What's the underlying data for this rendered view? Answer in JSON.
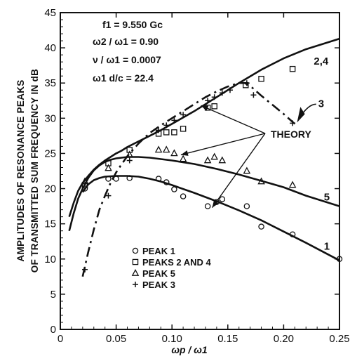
{
  "chart_data": {
    "type": "line",
    "title": "",
    "xlabel": "ωp / ω1",
    "ylabel_lines": [
      "AMPLITUDES OF RESONANCE PEAKS",
      "OF TRANSMITTED SUM FREQUENCY IN dB"
    ],
    "xlim": [
      0,
      0.25
    ],
    "ylim": [
      0,
      45
    ],
    "x_ticks": [
      "0",
      "0.05",
      "0.10",
      "0.15",
      "0.20",
      "0.25"
    ],
    "y_ticks": [
      "0",
      "5",
      "10",
      "15",
      "20",
      "25",
      "30",
      "35",
      "40",
      "45"
    ],
    "parameters": [
      "f1 = 9.550 Gc",
      "ω2 / ω1 = 0.90",
      "ν / ω1 = 0.0007",
      "ω1 d/c = 22.4"
    ],
    "theory_label": "THEORY",
    "grid": false,
    "legend_position": "bottom-left",
    "series": [
      {
        "name": "2,4",
        "kind": "theory",
        "style": "solid",
        "x": [
          0.008,
          0.012,
          0.016,
          0.02,
          0.025,
          0.03,
          0.035,
          0.04,
          0.045,
          0.05,
          0.055,
          0.06,
          0.07,
          0.08,
          0.09,
          0.1,
          0.12,
          0.14,
          0.16,
          0.18,
          0.2,
          0.22,
          0.25
        ],
        "y": [
          16.0,
          18.0,
          19.7,
          20.8,
          21.8,
          22.7,
          23.4,
          24.0,
          24.5,
          25.0,
          25.4,
          25.9,
          26.7,
          27.5,
          28.3,
          29.2,
          31.0,
          33.0,
          35.0,
          36.9,
          38.5,
          39.8,
          41.3
        ]
      },
      {
        "name": "5",
        "kind": "theory",
        "style": "solid",
        "x": [
          0.008,
          0.012,
          0.016,
          0.02,
          0.025,
          0.03,
          0.035,
          0.04,
          0.045,
          0.05,
          0.055,
          0.06,
          0.07,
          0.08,
          0.09,
          0.1,
          0.12,
          0.14,
          0.16,
          0.18,
          0.2,
          0.22,
          0.25
        ],
        "y": [
          14.0,
          16.5,
          18.6,
          20.0,
          21.5,
          22.6,
          23.3,
          23.8,
          24.1,
          24.3,
          24.4,
          24.5,
          24.5,
          24.4,
          24.2,
          24.0,
          23.5,
          22.8,
          22.0,
          21.1,
          20.2,
          19.0,
          17.5
        ]
      },
      {
        "name": "1",
        "kind": "theory",
        "style": "solid",
        "x": [
          0.02,
          0.025,
          0.03,
          0.035,
          0.04,
          0.05,
          0.06,
          0.07,
          0.08,
          0.09,
          0.1,
          0.12,
          0.14,
          0.16,
          0.18,
          0.2,
          0.22,
          0.25
        ],
        "y": [
          19.5,
          20.6,
          21.2,
          21.5,
          21.7,
          21.8,
          21.8,
          21.7,
          21.4,
          21.0,
          20.5,
          19.4,
          18.2,
          16.9,
          15.5,
          13.9,
          12.3,
          9.8
        ]
      },
      {
        "name": "3",
        "kind": "theory",
        "style": "dashed",
        "x": [
          0.02,
          0.025,
          0.03,
          0.035,
          0.04,
          0.045,
          0.05,
          0.055,
          0.06,
          0.07,
          0.08,
          0.09,
          0.1,
          0.11,
          0.12,
          0.13,
          0.14,
          0.15,
          0.16,
          0.165,
          0.17,
          0.18,
          0.19,
          0.2,
          0.21
        ],
        "y": [
          7.5,
          11.0,
          14.2,
          17.0,
          19.0,
          20.8,
          22.3,
          23.5,
          24.6,
          26.4,
          27.9,
          29.0,
          30.0,
          31.0,
          32.0,
          33.0,
          33.8,
          34.5,
          35.0,
          35.0,
          34.6,
          33.2,
          31.9,
          30.6,
          29.2
        ]
      }
    ],
    "measured": [
      {
        "name": "PEAK 1",
        "marker": "circle",
        "x": [
          0.022,
          0.043,
          0.05,
          0.062,
          0.088,
          0.095,
          0.102,
          0.11,
          0.132,
          0.14,
          0.145,
          0.167,
          0.18,
          0.208,
          0.25
        ],
        "y": [
          20.0,
          21.4,
          21.4,
          21.5,
          21.4,
          20.9,
          19.9,
          18.9,
          17.5,
          18.1,
          18.5,
          17.5,
          14.6,
          13.5,
          10.0
        ]
      },
      {
        "name": "PEAKS 2 AND 4",
        "marker": "square",
        "x": [
          0.022,
          0.043,
          0.062,
          0.088,
          0.095,
          0.102,
          0.11,
          0.132,
          0.138,
          0.166,
          0.18,
          0.208
        ],
        "y": [
          20.5,
          23.6,
          25.5,
          27.8,
          28.0,
          28.0,
          28.5,
          31.5,
          31.7,
          34.7,
          35.6,
          37.0
        ]
      },
      {
        "name": "PEAK 5",
        "marker": "triangle",
        "x": [
          0.022,
          0.043,
          0.062,
          0.088,
          0.095,
          0.102,
          0.11,
          0.132,
          0.138,
          0.145,
          0.167,
          0.18,
          0.208
        ],
        "y": [
          21.0,
          22.9,
          24.8,
          25.5,
          25.5,
          25.0,
          24.2,
          24.0,
          24.5,
          24.0,
          22.5,
          21.0,
          20.5
        ]
      },
      {
        "name": "PEAK 3",
        "marker": "plus",
        "x": [
          0.022,
          0.043,
          0.062,
          0.088,
          0.095,
          0.102,
          0.11,
          0.132,
          0.138,
          0.145,
          0.152,
          0.167,
          0.173,
          0.208
        ],
        "y": [
          8.5,
          19.0,
          24.0,
          28.3,
          29.0,
          29.7,
          30.5,
          32.5,
          33.0,
          33.6,
          34.0,
          35.0,
          33.3,
          29.3
        ]
      }
    ]
  }
}
